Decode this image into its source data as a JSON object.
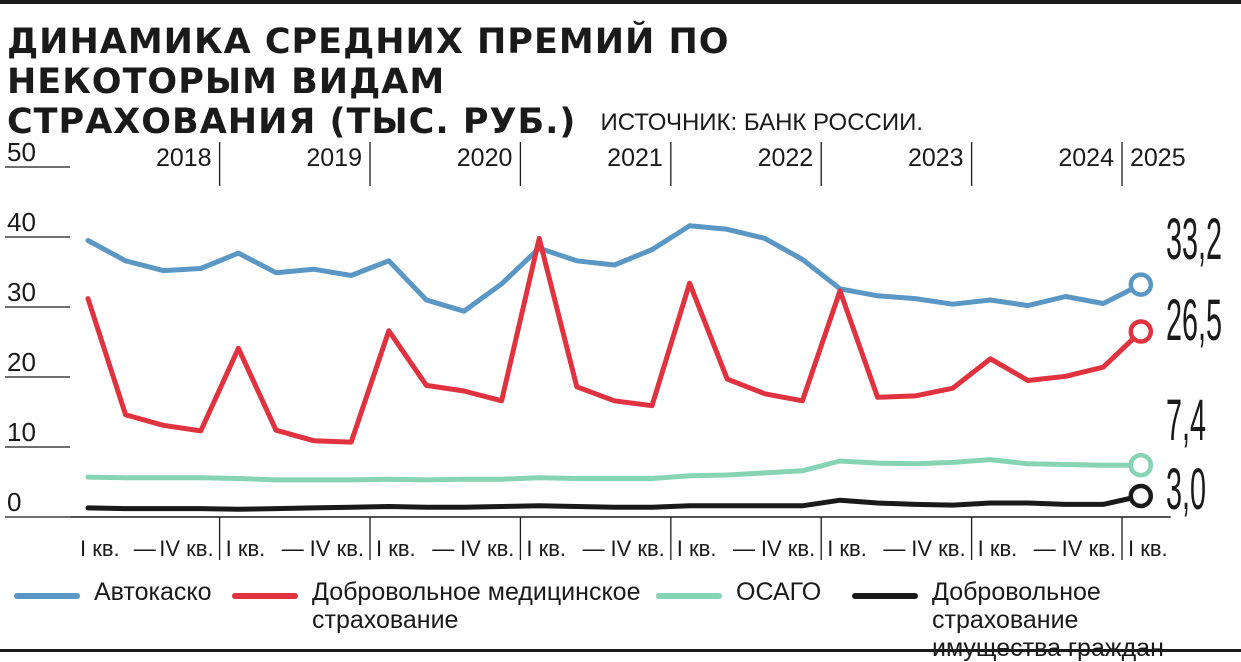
{
  "title": {
    "line1": "ДИНАМИКА СРЕДНИХ ПРЕМИЙ ПО НЕКОТОРЫМ ВИДАМ",
    "line2": "СТРАХОВАНИЯ (ТЫС. РУБ.)",
    "source": "ИСТОЧНИК: БАНК РОССИИ."
  },
  "chart_data": {
    "type": "line",
    "ylim": [
      0,
      50
    ],
    "y_ticks": [
      "0",
      "10",
      "20",
      "30",
      "40",
      "50"
    ],
    "y_tick_values": [
      0,
      10,
      20,
      30,
      40,
      50
    ],
    "years": [
      "2018",
      "2019",
      "2020",
      "2021",
      "2022",
      "2023",
      "2024",
      "2025"
    ],
    "quarter_labels": {
      "first": "I кв.",
      "last": "IV кв.",
      "dash": "—"
    },
    "x": [
      "2018 I",
      "2018 II",
      "2018 III",
      "2018 IV",
      "2019 I",
      "2019 II",
      "2019 III",
      "2019 IV",
      "2020 I",
      "2020 II",
      "2020 III",
      "2020 IV",
      "2021 I",
      "2021 II",
      "2021 III",
      "2021 IV",
      "2022 I",
      "2022 II",
      "2022 III",
      "2022 IV",
      "2023 I",
      "2023 II",
      "2023 III",
      "2023 IV",
      "2024 I",
      "2024 II",
      "2024 III",
      "2024 IV",
      "2025 I"
    ],
    "series": [
      {
        "name": "Автокаско",
        "color": "#5b97c4",
        "end_label": "33,2",
        "values": [
          39.5,
          36.6,
          35.2,
          35.5,
          37.7,
          34.9,
          35.4,
          34.5,
          36.6,
          31.0,
          29.4,
          33.3,
          38.4,
          36.6,
          36.0,
          38.2,
          41.6,
          41.1,
          39.8,
          36.8,
          32.6,
          31.6,
          31.2,
          30.4,
          31.0,
          30.2,
          31.5,
          30.5,
          33.2
        ]
      },
      {
        "name": "Добровольное медицинское страхование",
        "color": "#e0323f",
        "end_label": "26,5",
        "values": [
          31.2,
          14.6,
          13.1,
          12.3,
          24.1,
          12.4,
          10.9,
          10.7,
          26.6,
          18.8,
          18.0,
          16.6,
          39.8,
          18.6,
          16.6,
          15.9,
          33.4,
          19.7,
          17.6,
          16.6,
          32.3,
          17.1,
          17.3,
          18.4,
          22.6,
          19.5,
          20.1,
          21.4,
          26.5
        ]
      },
      {
        "name": "ОСАГО",
        "color": "#86d4b4",
        "end_label": "7,4",
        "values": [
          5.7,
          5.6,
          5.6,
          5.6,
          5.5,
          5.3,
          5.3,
          5.3,
          5.4,
          5.3,
          5.4,
          5.4,
          5.6,
          5.5,
          5.5,
          5.5,
          5.9,
          6.0,
          6.3,
          6.6,
          8.0,
          7.7,
          7.6,
          7.8,
          8.2,
          7.6,
          7.5,
          7.4,
          7.4
        ]
      },
      {
        "name": "Добровольное страхование имущества граждан",
        "color": "#1a1a1a",
        "end_label": "3,0",
        "values": [
          1.3,
          1.2,
          1.2,
          1.2,
          1.1,
          1.2,
          1.3,
          1.4,
          1.5,
          1.4,
          1.4,
          1.5,
          1.6,
          1.5,
          1.4,
          1.4,
          1.6,
          1.6,
          1.6,
          1.6,
          2.4,
          2.0,
          1.8,
          1.7,
          2.0,
          2.0,
          1.8,
          1.8,
          3.0
        ]
      }
    ]
  },
  "legend": [
    {
      "lines": [
        "Автокаско"
      ],
      "color": "#5b97c4"
    },
    {
      "lines": [
        "Добровольное медицинское",
        "страхование"
      ],
      "color": "#e0323f"
    },
    {
      "lines": [
        "ОСАГО"
      ],
      "color": "#86d4b4"
    },
    {
      "lines": [
        "Добровольное страхование",
        "имущества граждан"
      ],
      "color": "#1a1a1a"
    }
  ]
}
